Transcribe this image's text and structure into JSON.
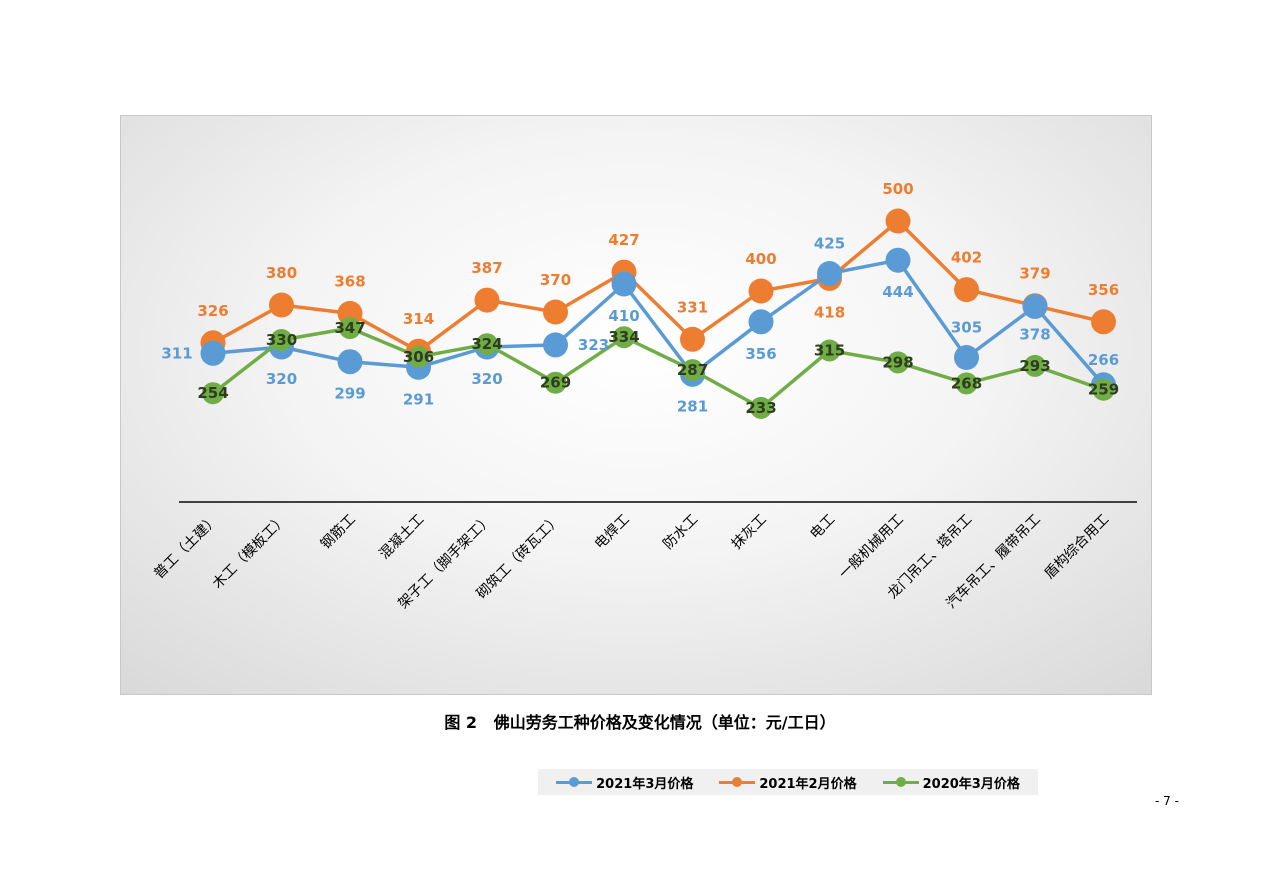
{
  "caption": "图 2   佛山劳务工种价格及变化情况（单位：元/工日）",
  "page_number": "- 7 -",
  "chart_data": {
    "type": "line",
    "categories": [
      "普工（土建）",
      "木工（模板工）",
      "钢筋工",
      "混凝土工",
      "架子工（脚手架工）",
      "砌筑工（砖瓦工）",
      "电焊工",
      "防水工",
      "抹灰工",
      "电工",
      "一般机械用工",
      "龙门吊工、塔吊工",
      "汽车吊工、履带吊工",
      "盾构综合用工"
    ],
    "series": [
      {
        "name": "2021年3月价格",
        "color": "#5b9bd5",
        "values": [
          311,
          320,
          299,
          291,
          320,
          323,
          410,
          281,
          356,
          425,
          444,
          305,
          378,
          266
        ]
      },
      {
        "name": "2021年2月价格",
        "color": "#ed7d31",
        "values": [
          326,
          380,
          368,
          314,
          387,
          370,
          427,
          331,
          400,
          418,
          500,
          402,
          379,
          356
        ]
      },
      {
        "name": "2020年3月价格",
        "color": "#70ad47",
        "values": [
          254,
          330,
          347,
          306,
          324,
          269,
          334,
          287,
          233,
          315,
          298,
          268,
          293,
          259
        ]
      }
    ],
    "legend_position": "bottom",
    "grid": false
  }
}
